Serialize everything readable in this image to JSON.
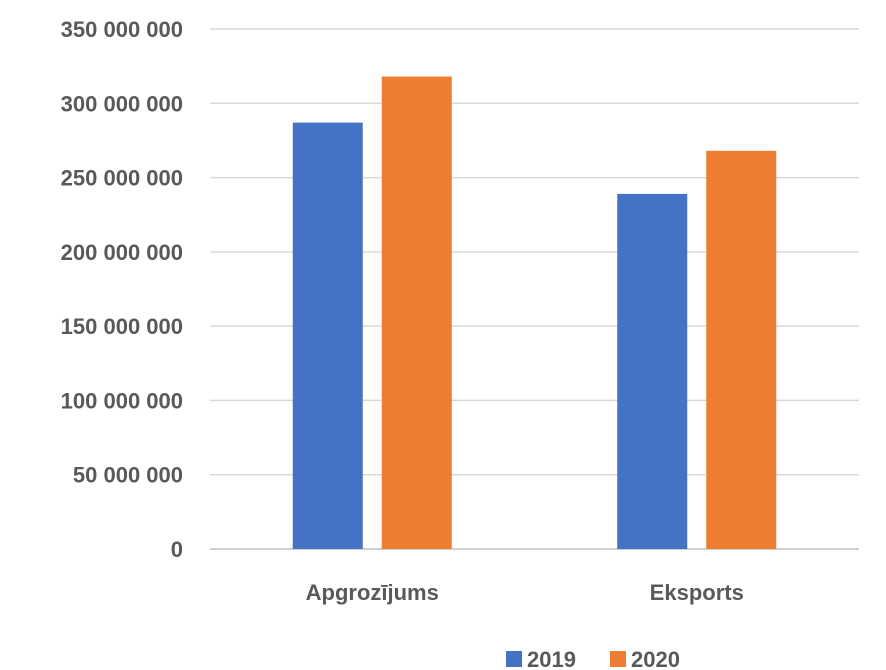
{
  "chart_data": {
    "type": "bar",
    "categories": [
      "Apgrozījums",
      "Eksports"
    ],
    "series": [
      {
        "name": "2019",
        "values": [
          287000000,
          239000000
        ],
        "color": "#4472C4"
      },
      {
        "name": "2020",
        "values": [
          318000000,
          268000000
        ],
        "color": "#ED7D31"
      }
    ],
    "yticks": [
      "0",
      "50 000 000",
      "100 000 000",
      "150 000 000",
      "200 000 000",
      "250 000 000",
      "300 000 000",
      "350 000 000"
    ],
    "ylim": [
      0,
      350000000
    ],
    "grid": true,
    "legend": "bottom"
  }
}
